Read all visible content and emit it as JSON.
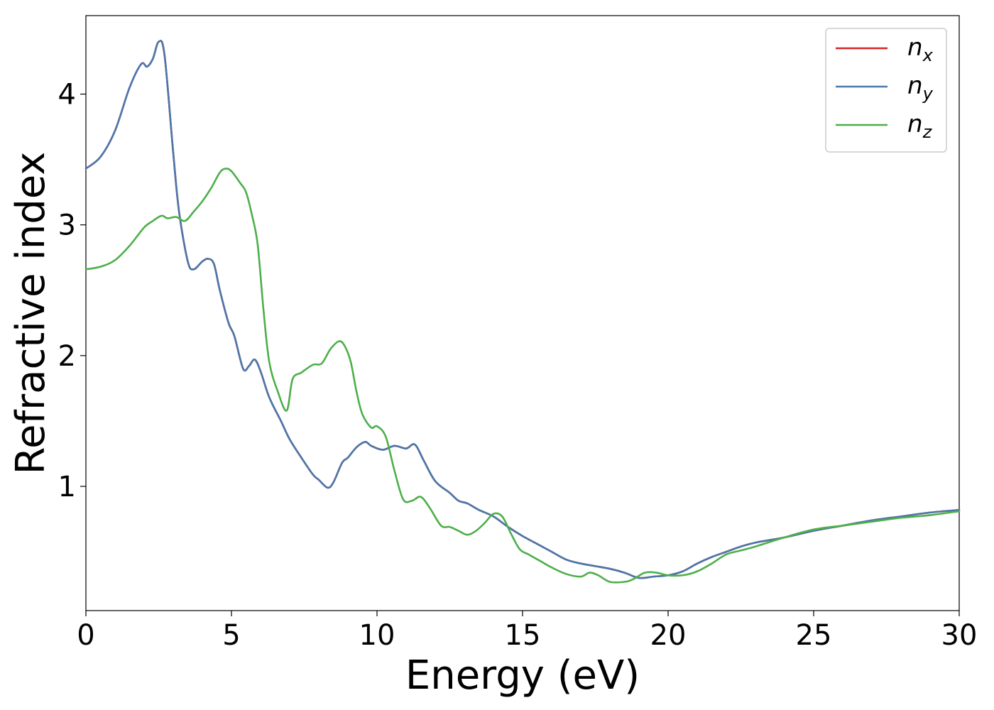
{
  "chart_data": {
    "type": "line",
    "title": "",
    "xlabel": "Energy (eV)",
    "ylabel": "Refractive index",
    "xlim": [
      0,
      30
    ],
    "ylim": [
      0.05,
      4.6
    ],
    "xticks": [
      0,
      5,
      10,
      15,
      20,
      25,
      30
    ],
    "yticks": [
      1,
      2,
      3,
      4
    ],
    "grid": false,
    "legend_position": "top-right",
    "series": [
      {
        "name": "n",
        "subscript": "x",
        "color": "#d62728",
        "x": [
          0,
          0.5,
          1.0,
          1.5,
          1.9,
          2.1,
          2.3,
          2.5,
          2.7,
          3.0,
          3.2,
          3.5,
          3.7,
          4.0,
          4.2,
          4.4,
          4.6,
          4.9,
          5.1,
          5.4,
          5.6,
          5.8,
          6.0,
          6.3,
          6.7,
          7.0,
          7.4,
          7.8,
          8.0,
          8.3,
          8.5,
          8.8,
          9.0,
          9.3,
          9.6,
          9.8,
          10.2,
          10.6,
          11.0,
          11.3,
          11.6,
          12.0,
          12.5,
          12.8,
          13.1,
          13.5,
          14.0,
          14.5,
          15.0,
          15.5,
          16.0,
          16.5,
          17.0,
          17.5,
          18.0,
          18.5,
          19.0,
          19.5,
          20.0,
          20.5,
          21.0,
          21.5,
          22.0,
          22.5,
          23.0,
          24.0,
          25.0,
          26.0,
          27.0,
          28.0,
          29.0,
          30.0
        ],
        "y": [
          3.43,
          3.52,
          3.72,
          4.05,
          4.23,
          4.21,
          4.27,
          4.4,
          4.3,
          3.55,
          3.1,
          2.72,
          2.66,
          2.72,
          2.74,
          2.7,
          2.5,
          2.25,
          2.15,
          1.9,
          1.92,
          1.97,
          1.88,
          1.68,
          1.5,
          1.36,
          1.22,
          1.09,
          1.05,
          0.99,
          1.03,
          1.18,
          1.22,
          1.3,
          1.34,
          1.31,
          1.28,
          1.31,
          1.29,
          1.32,
          1.2,
          1.04,
          0.95,
          0.89,
          0.87,
          0.82,
          0.77,
          0.69,
          0.62,
          0.56,
          0.5,
          0.44,
          0.41,
          0.39,
          0.37,
          0.34,
          0.3,
          0.31,
          0.32,
          0.35,
          0.41,
          0.46,
          0.5,
          0.54,
          0.57,
          0.61,
          0.66,
          0.7,
          0.74,
          0.77,
          0.8,
          0.82
        ]
      },
      {
        "name": "n",
        "subscript": "y",
        "color": "#4a77ab",
        "x": [
          0,
          0.5,
          1.0,
          1.5,
          1.9,
          2.1,
          2.3,
          2.5,
          2.7,
          3.0,
          3.2,
          3.5,
          3.7,
          4.0,
          4.2,
          4.4,
          4.6,
          4.9,
          5.1,
          5.4,
          5.6,
          5.8,
          6.0,
          6.3,
          6.7,
          7.0,
          7.4,
          7.8,
          8.0,
          8.3,
          8.5,
          8.8,
          9.0,
          9.3,
          9.6,
          9.8,
          10.2,
          10.6,
          11.0,
          11.3,
          11.6,
          12.0,
          12.5,
          12.8,
          13.1,
          13.5,
          14.0,
          14.5,
          15.0,
          15.5,
          16.0,
          16.5,
          17.0,
          17.5,
          18.0,
          18.5,
          19.0,
          19.5,
          20.0,
          20.5,
          21.0,
          21.5,
          22.0,
          22.5,
          23.0,
          24.0,
          25.0,
          26.0,
          27.0,
          28.0,
          29.0,
          30.0
        ],
        "y": [
          3.43,
          3.52,
          3.72,
          4.05,
          4.23,
          4.21,
          4.27,
          4.4,
          4.3,
          3.55,
          3.1,
          2.72,
          2.66,
          2.72,
          2.74,
          2.7,
          2.5,
          2.25,
          2.15,
          1.9,
          1.92,
          1.97,
          1.88,
          1.68,
          1.5,
          1.36,
          1.22,
          1.09,
          1.05,
          0.99,
          1.03,
          1.18,
          1.22,
          1.3,
          1.34,
          1.31,
          1.28,
          1.31,
          1.29,
          1.32,
          1.2,
          1.04,
          0.95,
          0.89,
          0.87,
          0.82,
          0.77,
          0.69,
          0.62,
          0.56,
          0.5,
          0.44,
          0.41,
          0.39,
          0.37,
          0.34,
          0.3,
          0.31,
          0.32,
          0.35,
          0.41,
          0.46,
          0.5,
          0.54,
          0.57,
          0.61,
          0.66,
          0.7,
          0.74,
          0.77,
          0.8,
          0.82
        ]
      },
      {
        "name": "n",
        "subscript": "z",
        "color": "#4daf4a",
        "x": [
          0,
          0.5,
          1.0,
          1.5,
          2.0,
          2.3,
          2.6,
          2.8,
          3.1,
          3.4,
          3.7,
          4.0,
          4.3,
          4.6,
          4.8,
          5.0,
          5.3,
          5.5,
          5.7,
          5.9,
          6.1,
          6.3,
          6.6,
          6.9,
          7.1,
          7.4,
          7.8,
          8.1,
          8.4,
          8.7,
          8.9,
          9.1,
          9.3,
          9.5,
          9.8,
          10.0,
          10.3,
          10.6,
          10.9,
          11.2,
          11.5,
          11.8,
          12.2,
          12.5,
          12.8,
          13.1,
          13.4,
          13.7,
          14.0,
          14.3,
          14.6,
          14.9,
          15.2,
          15.6,
          16.0,
          16.5,
          17.0,
          17.3,
          17.6,
          18.0,
          18.5,
          18.8,
          19.2,
          19.6,
          20.0,
          20.5,
          21.0,
          21.5,
          22.0,
          22.5,
          23.0,
          24.0,
          25.0,
          26.0,
          27.0,
          28.0,
          29.0,
          30.0
        ],
        "y": [
          2.66,
          2.68,
          2.73,
          2.84,
          2.98,
          3.03,
          3.07,
          3.05,
          3.06,
          3.03,
          3.1,
          3.18,
          3.28,
          3.4,
          3.43,
          3.41,
          3.32,
          3.25,
          3.08,
          2.85,
          2.35,
          1.95,
          1.72,
          1.58,
          1.82,
          1.87,
          1.93,
          1.94,
          2.05,
          2.11,
          2.07,
          1.95,
          1.72,
          1.55,
          1.45,
          1.46,
          1.38,
          1.12,
          0.9,
          0.89,
          0.92,
          0.84,
          0.7,
          0.69,
          0.66,
          0.63,
          0.66,
          0.72,
          0.79,
          0.77,
          0.64,
          0.52,
          0.48,
          0.43,
          0.38,
          0.33,
          0.31,
          0.34,
          0.32,
          0.27,
          0.27,
          0.29,
          0.34,
          0.34,
          0.32,
          0.32,
          0.35,
          0.41,
          0.48,
          0.51,
          0.54,
          0.61,
          0.67,
          0.7,
          0.73,
          0.76,
          0.78,
          0.81
        ]
      }
    ]
  }
}
